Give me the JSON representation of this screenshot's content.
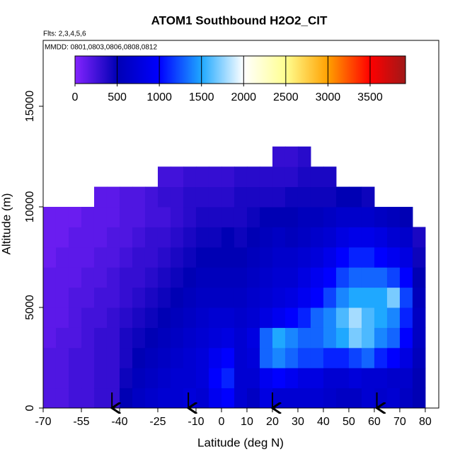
{
  "chart_data": {
    "type": "heatmap",
    "title": "ATOM1 Southbound H2O2_CIT",
    "subtitle": "Flts: 2,3,4,5,6",
    "annotation": "MMDD: 0801,0803,0806,0808,0812",
    "xlabel": "Latitude (deg N)",
    "ylabel": "Altitude (m)",
    "xlim": [
      -70,
      85.3
    ],
    "ylim": [
      0,
      18275
    ],
    "xticks": [
      -70,
      -55,
      -40,
      -25,
      -10,
      0,
      10,
      20,
      30,
      40,
      50,
      60,
      70,
      80
    ],
    "yticks": [
      0,
      5000,
      10000,
      15000
    ],
    "x_edges": [
      -70,
      -65,
      -60,
      -55,
      -50,
      -45,
      -40,
      -35,
      -30,
      -25,
      -20,
      -15,
      -10,
      -5,
      0,
      5,
      10,
      15,
      20,
      25,
      30,
      35,
      40,
      45,
      50,
      55,
      60,
      65,
      70,
      75,
      80
    ],
    "y_edges": [
      0,
      1000,
      2000,
      3000,
      4000,
      5000,
      6000,
      7000,
      8000,
      9000,
      10000,
      11000,
      12000,
      13000
    ],
    "z": [
      [
        200,
        200,
        250,
        250,
        300,
        300,
        500,
        600,
        650,
        700,
        700,
        750,
        700,
        900,
        1000,
        700,
        600,
        800,
        700,
        700,
        700,
        700,
        650,
        600,
        600,
        700,
        650,
        700,
        600,
        500
      ],
      [
        200,
        200,
        250,
        250,
        300,
        300,
        450,
        550,
        600,
        650,
        700,
        700,
        750,
        1000,
        1100,
        700,
        700,
        900,
        1000,
        900,
        800,
        800,
        700,
        700,
        750,
        700,
        700,
        650,
        650,
        500
      ],
      [
        200,
        200,
        250,
        250,
        300,
        300,
        400,
        500,
        550,
        600,
        650,
        700,
        750,
        900,
        1000,
        700,
        750,
        1300,
        1400,
        1300,
        1200,
        1200,
        1100,
        1100,
        1200,
        1300,
        1100,
        1000,
        800,
        550
      ],
      [
        150,
        200,
        200,
        250,
        300,
        300,
        400,
        450,
        500,
        550,
        600,
        650,
        700,
        750,
        800,
        700,
        800,
        1300,
        1500,
        1400,
        1300,
        1300,
        1400,
        1500,
        1700,
        1600,
        1400,
        1300,
        1000,
        600
      ],
      [
        150,
        150,
        200,
        250,
        250,
        300,
        350,
        400,
        450,
        500,
        550,
        600,
        650,
        700,
        700,
        650,
        700,
        800,
        900,
        1000,
        1100,
        1300,
        1400,
        1600,
        1800,
        1600,
        1500,
        1400,
        1100,
        600
      ],
      [
        150,
        150,
        200,
        200,
        250,
        250,
        300,
        350,
        400,
        450,
        500,
        550,
        600,
        600,
        600,
        600,
        650,
        700,
        750,
        800,
        900,
        1000,
        1200,
        1400,
        1500,
        1500,
        1500,
        1700,
        1200,
        550
      ],
      [
        150,
        150,
        150,
        200,
        200,
        250,
        300,
        300,
        350,
        400,
        450,
        500,
        550,
        550,
        550,
        550,
        600,
        650,
        700,
        700,
        800,
        900,
        1000,
        1200,
        1300,
        1300,
        1300,
        1200,
        1000,
        500
      ],
      [
        100,
        150,
        150,
        150,
        200,
        200,
        250,
        300,
        300,
        350,
        400,
        450,
        500,
        500,
        500,
        500,
        550,
        600,
        650,
        650,
        700,
        750,
        850,
        1000,
        1100,
        1100,
        1000,
        900,
        800,
        450
      ],
      [
        100,
        100,
        150,
        150,
        150,
        200,
        200,
        250,
        300,
        300,
        350,
        400,
        450,
        450,
        500,
        450,
        500,
        550,
        600,
        550,
        600,
        650,
        700,
        800,
        850,
        850,
        800,
        700,
        650,
        400
      ],
      [
        100,
        100,
        100,
        150,
        150,
        150,
        200,
        200,
        250,
        250,
        300,
        350,
        400,
        400,
        400,
        400,
        450,
        500,
        500,
        500,
        550,
        550,
        600,
        650,
        650,
        650,
        600,
        550,
        500,
        null
      ],
      [
        null,
        null,
        null,
        null,
        150,
        150,
        200,
        200,
        250,
        300,
        300,
        350,
        350,
        350,
        350,
        400,
        400,
        400,
        400,
        450,
        450,
        450,
        450,
        500,
        500,
        450,
        null,
        null,
        null,
        null
      ],
      [
        null,
        null,
        null,
        null,
        null,
        null,
        null,
        null,
        null,
        250,
        250,
        300,
        300,
        300,
        300,
        350,
        350,
        350,
        350,
        350,
        400,
        400,
        400,
        null,
        null,
        null,
        null,
        null,
        null,
        null
      ],
      [
        null,
        null,
        null,
        null,
        null,
        null,
        null,
        null,
        null,
        null,
        null,
        null,
        null,
        null,
        null,
        null,
        null,
        null,
        300,
        300,
        350,
        null,
        null,
        null,
        null,
        null,
        null,
        null,
        null,
        null
      ]
    ],
    "colorscale": [
      [
        0,
        "#8424ff"
      ],
      [
        500,
        "#0000b4"
      ],
      [
        1000,
        "#0000ff"
      ],
      [
        1500,
        "#1fa8ff"
      ],
      [
        2000,
        "#ffffff"
      ],
      [
        2500,
        "#ffff90"
      ],
      [
        3000,
        "#ffa000"
      ],
      [
        3500,
        "#ff0000"
      ],
      [
        3920,
        "#a01818"
      ]
    ],
    "colorbar_lim": [
      0,
      3920
    ],
    "colorbar_ticks": [
      0,
      500,
      1000,
      1500,
      2000,
      2500,
      3000,
      3500
    ],
    "markers_x": [
      -43,
      -13,
      20,
      61
    ]
  }
}
